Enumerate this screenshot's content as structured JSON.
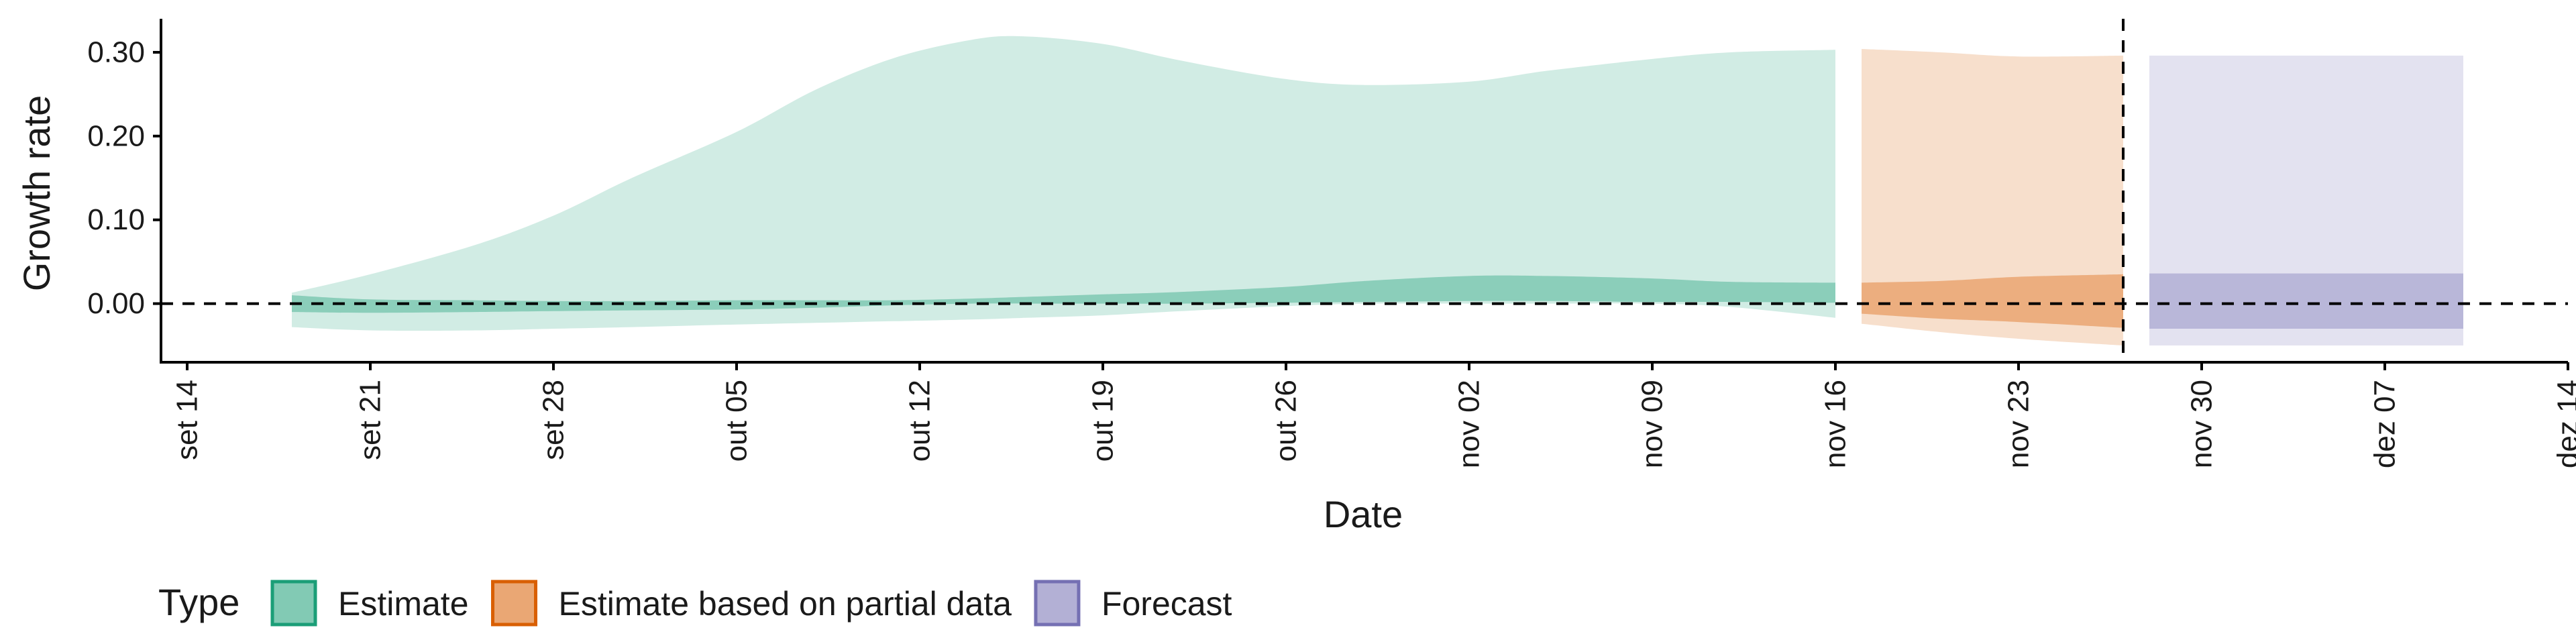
{
  "chart_data": {
    "type": "area",
    "title": "",
    "xlabel": "Date",
    "ylabel": "Growth rate",
    "x_range": [
      "2020-09-13",
      "2020-12-14"
    ],
    "ylim": [
      -0.07,
      0.34
    ],
    "x_ticks": [
      {
        "date": "2020-09-14",
        "label": "set 14"
      },
      {
        "date": "2020-09-21",
        "label": "set 21"
      },
      {
        "date": "2020-09-28",
        "label": "set 28"
      },
      {
        "date": "2020-10-05",
        "label": "out 05"
      },
      {
        "date": "2020-10-12",
        "label": "out 12"
      },
      {
        "date": "2020-10-19",
        "label": "out 19"
      },
      {
        "date": "2020-10-26",
        "label": "out 26"
      },
      {
        "date": "2020-11-02",
        "label": "nov 02"
      },
      {
        "date": "2020-11-09",
        "label": "nov 09"
      },
      {
        "date": "2020-11-16",
        "label": "nov 16"
      },
      {
        "date": "2020-11-23",
        "label": "nov 23"
      },
      {
        "date": "2020-11-30",
        "label": "nov 30"
      },
      {
        "date": "2020-12-07",
        "label": "dez 07"
      },
      {
        "date": "2020-12-14",
        "label": "dez 14"
      }
    ],
    "y_ticks": [
      {
        "value": 0.0,
        "label": "0.00"
      },
      {
        "value": 0.1,
        "label": "0.10"
      },
      {
        "value": 0.2,
        "label": "0.20"
      },
      {
        "value": 0.3,
        "label": "0.30"
      }
    ],
    "reference_lines": {
      "horizontal_y": 0.0,
      "vertical_date": "2020-11-27",
      "style": "dashed"
    },
    "grid": false,
    "legend": {
      "title": "Type",
      "position": "bottom-left",
      "entries": [
        {
          "name": "Estimate",
          "color": "#1b9e77"
        },
        {
          "name": "Estimate based on partial data",
          "color": "#d95f02"
        },
        {
          "name": "Forecast",
          "color": "#7570b3"
        }
      ]
    },
    "series": [
      {
        "name": "Estimate",
        "color": "#1b9e77",
        "points": [
          {
            "x": "2020-09-18",
            "outer_lo": -0.028,
            "outer_hi": 0.013,
            "inner_lo": -0.01,
            "inner_hi": 0.01
          },
          {
            "x": "2020-09-21",
            "outer_lo": -0.032,
            "outer_hi": 0.035,
            "inner_lo": -0.011,
            "inner_hi": 0.005
          },
          {
            "x": "2020-09-25",
            "outer_lo": -0.032,
            "outer_hi": 0.07,
            "inner_lo": -0.01,
            "inner_hi": 0.004
          },
          {
            "x": "2020-09-28",
            "outer_lo": -0.03,
            "outer_hi": 0.105,
            "inner_lo": -0.009,
            "inner_hi": 0.003
          },
          {
            "x": "2020-10-01",
            "outer_lo": -0.028,
            "outer_hi": 0.15,
            "inner_lo": -0.008,
            "inner_hi": 0.003
          },
          {
            "x": "2020-10-05",
            "outer_lo": -0.025,
            "outer_hi": 0.205,
            "inner_lo": -0.007,
            "inner_hi": 0.004
          },
          {
            "x": "2020-10-08",
            "outer_lo": -0.023,
            "outer_hi": 0.255,
            "inner_lo": -0.005,
            "inner_hi": 0.004
          },
          {
            "x": "2020-10-11",
            "outer_lo": -0.021,
            "outer_hi": 0.293,
            "inner_lo": -0.002,
            "inner_hi": 0.004
          },
          {
            "x": "2020-10-14",
            "outer_lo": -0.019,
            "outer_hi": 0.315,
            "inner_lo": 0.0,
            "inner_hi": 0.006
          },
          {
            "x": "2020-10-16",
            "outer_lo": -0.017,
            "outer_hi": 0.319,
            "inner_lo": 0.0,
            "inner_hi": 0.008
          },
          {
            "x": "2020-10-19",
            "outer_lo": -0.014,
            "outer_hi": 0.31,
            "inner_lo": 0.0,
            "inner_hi": 0.011
          },
          {
            "x": "2020-10-22",
            "outer_lo": -0.009,
            "outer_hi": 0.29,
            "inner_lo": 0.0,
            "inner_hi": 0.014
          },
          {
            "x": "2020-10-26",
            "outer_lo": -0.003,
            "outer_hi": 0.268,
            "inner_lo": 0.001,
            "inner_hi": 0.02
          },
          {
            "x": "2020-10-29",
            "outer_lo": 0.0,
            "outer_hi": 0.261,
            "inner_lo": 0.002,
            "inner_hi": 0.027
          },
          {
            "x": "2020-11-02",
            "outer_lo": 0.0,
            "outer_hi": 0.265,
            "inner_lo": 0.003,
            "inner_hi": 0.033
          },
          {
            "x": "2020-11-05",
            "outer_lo": 0.0,
            "outer_hi": 0.278,
            "inner_lo": 0.003,
            "inner_hi": 0.033
          },
          {
            "x": "2020-11-09",
            "outer_lo": 0.0,
            "outer_hi": 0.292,
            "inner_lo": 0.002,
            "inner_hi": 0.03
          },
          {
            "x": "2020-11-12",
            "outer_lo": -0.004,
            "outer_hi": 0.3,
            "inner_lo": 0.002,
            "inner_hi": 0.026
          },
          {
            "x": "2020-11-16",
            "outer_lo": -0.017,
            "outer_hi": 0.303,
            "inner_lo": 0.001,
            "inner_hi": 0.025
          }
        ]
      },
      {
        "name": "Estimate based on partial data",
        "color": "#d95f02",
        "points": [
          {
            "x": "2020-11-17",
            "outer_lo": -0.024,
            "outer_hi": 0.304,
            "inner_lo": -0.012,
            "inner_hi": 0.025
          },
          {
            "x": "2020-11-20",
            "outer_lo": -0.034,
            "outer_hi": 0.3,
            "inner_lo": -0.018,
            "inner_hi": 0.027
          },
          {
            "x": "2020-11-23",
            "outer_lo": -0.042,
            "outer_hi": 0.295,
            "inner_lo": -0.022,
            "inner_hi": 0.032
          },
          {
            "x": "2020-11-27",
            "outer_lo": -0.05,
            "outer_hi": 0.296,
            "inner_lo": -0.029,
            "inner_hi": 0.035
          }
        ]
      },
      {
        "name": "Forecast",
        "color": "#7570b3",
        "points": [
          {
            "x": "2020-11-28",
            "outer_lo": -0.05,
            "outer_hi": 0.296,
            "inner_lo": -0.03,
            "inner_hi": 0.036
          },
          {
            "x": "2020-12-10",
            "outer_lo": -0.05,
            "outer_hi": 0.296,
            "inner_lo": -0.03,
            "inner_hi": 0.036
          }
        ]
      }
    ]
  }
}
